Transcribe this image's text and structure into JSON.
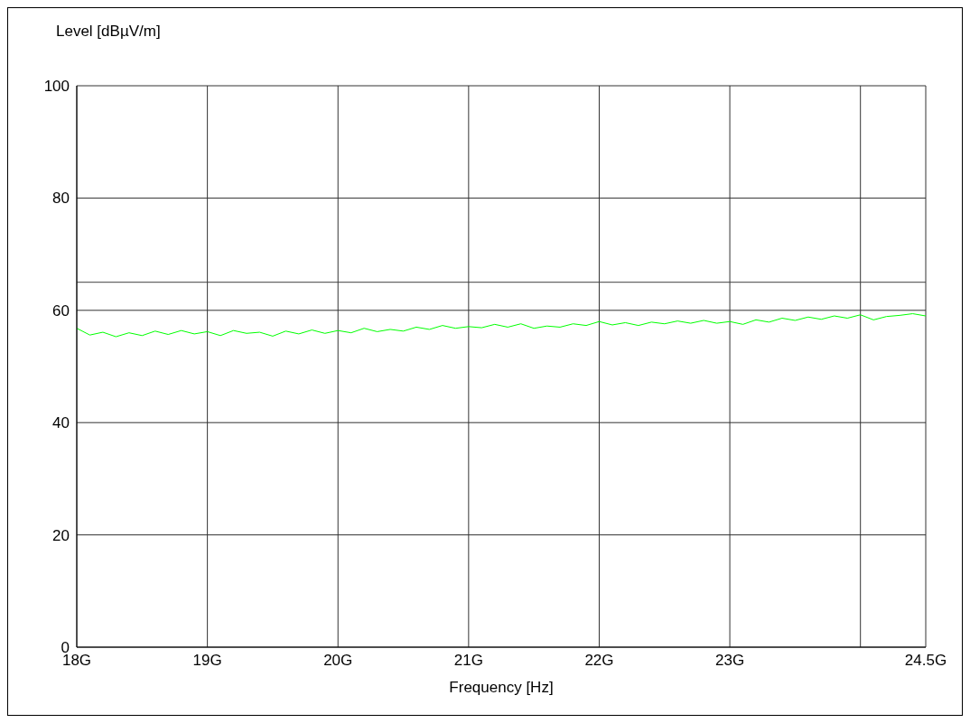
{
  "chart_data": {
    "type": "line",
    "xlabel": "Frequency [Hz]",
    "ylabel": "Level [dBµV/m]",
    "xlim": [
      18,
      24.5
    ],
    "xticks": [
      {
        "value": 18,
        "label": "18G"
      },
      {
        "value": 19,
        "label": "19G"
      },
      {
        "value": 20,
        "label": "20G"
      },
      {
        "value": 21,
        "label": "21G"
      },
      {
        "value": 22,
        "label": "22G"
      },
      {
        "value": 23,
        "label": "23G"
      },
      {
        "value": 24,
        "label": null
      },
      {
        "value": 24.5,
        "label": "24.5G"
      }
    ],
    "ylim": [
      0,
      100
    ],
    "yticks": [
      0,
      20,
      40,
      60,
      80,
      100
    ],
    "grid": true,
    "legend": false,
    "marker": "none",
    "line_style": "solid",
    "ref_lines": [
      {
        "axis": "y",
        "value": 65,
        "color": "#404040"
      }
    ],
    "x": [
      18.0,
      18.1,
      18.2,
      18.3,
      18.4,
      18.5,
      18.6,
      18.7,
      18.8,
      18.9,
      19.0,
      19.1,
      19.2,
      19.3,
      19.4,
      19.5,
      19.6,
      19.7,
      19.8,
      19.9,
      20.0,
      20.1,
      20.2,
      20.3,
      20.4,
      20.5,
      20.6,
      20.7,
      20.8,
      20.9,
      21.0,
      21.1,
      21.2,
      21.3,
      21.4,
      21.5,
      21.6,
      21.7,
      21.8,
      21.9,
      22.0,
      22.1,
      22.2,
      22.3,
      22.4,
      22.5,
      22.6,
      22.7,
      22.8,
      22.9,
      23.0,
      23.1,
      23.2,
      23.3,
      23.4,
      23.5,
      23.6,
      23.7,
      23.8,
      23.9,
      24.0,
      24.1,
      24.2,
      24.3,
      24.4,
      24.5
    ],
    "series": [
      {
        "color": "#00ff00",
        "values": [
          56.8,
          55.6,
          56.1,
          55.3,
          56.0,
          55.5,
          56.3,
          55.7,
          56.4,
          55.8,
          56.2,
          55.5,
          56.4,
          55.9,
          56.1,
          55.4,
          56.3,
          55.8,
          56.5,
          55.9,
          56.4,
          56.0,
          56.8,
          56.2,
          56.6,
          56.3,
          57.0,
          56.6,
          57.3,
          56.8,
          57.1,
          56.9,
          57.5,
          57.0,
          57.6,
          56.8,
          57.2,
          57.0,
          57.6,
          57.3,
          58.0,
          57.4,
          57.8,
          57.3,
          57.9,
          57.6,
          58.1,
          57.7,
          58.2,
          57.7,
          58.0,
          57.5,
          58.3,
          57.9,
          58.6,
          58.2,
          58.8,
          58.4,
          59.0,
          58.6,
          59.2,
          58.3,
          58.9,
          59.1,
          59.4,
          59.0
        ]
      }
    ]
  }
}
